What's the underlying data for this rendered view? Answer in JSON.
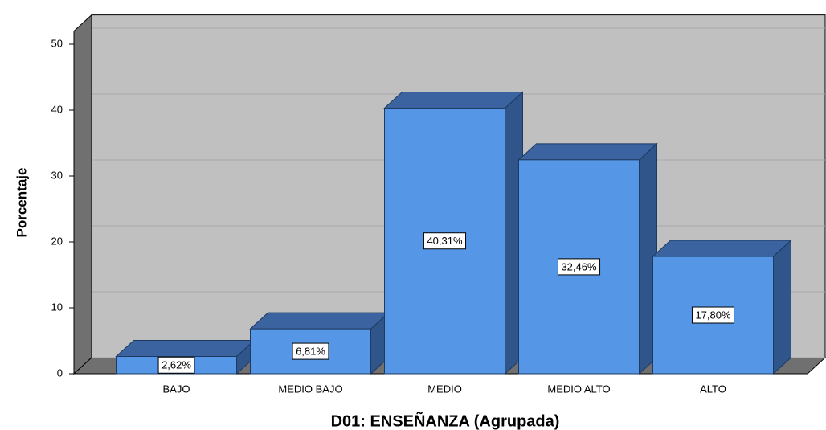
{
  "chart_data": {
    "type": "bar3d",
    "x_label": "D01: ENSEÑANZA (Agrupada)",
    "y_label": "Porcentaje",
    "categories": [
      "BAJO",
      "MEDIO BAJO",
      "MEDIO",
      "MEDIO ALTO",
      "ALTO"
    ],
    "values": [
      2.62,
      6.81,
      40.31,
      32.46,
      17.8
    ],
    "value_labels": [
      "2,62%",
      "6,81%",
      "40,31%",
      "32,46%",
      "17,80%"
    ],
    "color": "#5597e6",
    "ylim": [
      0,
      52
    ],
    "yticks": [
      0,
      10,
      20,
      30,
      40,
      50
    ],
    "grid": true
  }
}
